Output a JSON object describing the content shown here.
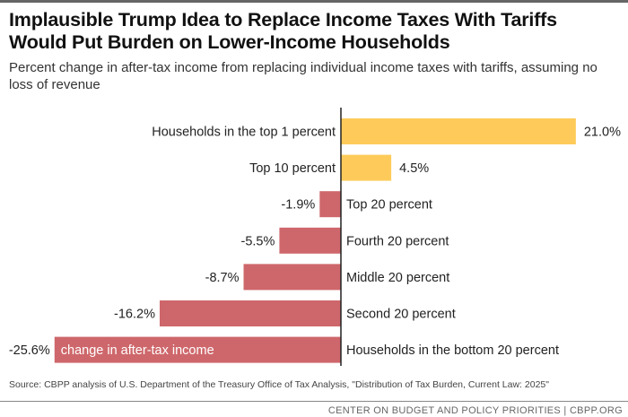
{
  "header": {
    "title": "Implausible Trump Idea to Replace Income Taxes With Tariffs Would Put Burden on Lower-Income Households",
    "subtitle": "Percent change in after-tax income from replacing individual income taxes with tariffs, assuming no loss of revenue"
  },
  "footer": {
    "source": "Source: CBPP analysis of U.S. Department of the Treasury Office of Tax Analysis, \"Distribution of Tax Burden, Current Law: 2025\"",
    "credit": "CENTER ON BUDGET AND POLICY PRIORITIES | CBPP.ORG"
  },
  "chart_data": {
    "type": "bar",
    "orientation": "horizontal",
    "title": "Implausible Trump Idea to Replace Income Taxes With Tariffs Would Put Burden on Lower-Income Households",
    "subtitle": "Percent change in after-tax income from replacing individual income taxes with tariffs, assuming no loss of revenue",
    "categories": [
      "Households in the top 1 percent",
      "Top 10 percent",
      "Top 20 percent",
      "Fourth 20 percent",
      "Middle 20 percent",
      "Second 20 percent",
      "Households in the bottom 20 percent"
    ],
    "values": [
      21.0,
      4.5,
      -1.9,
      -5.5,
      -8.7,
      -16.2,
      -25.6
    ],
    "value_labels": [
      "21.0%",
      "4.5%",
      "-1.9%",
      "-5.5%",
      "-8.7%",
      "-16.2%",
      "-25.6%"
    ],
    "annotation": "change in after-tax income",
    "xlim": [
      -25.6,
      21.0
    ],
    "grid": false,
    "colors": {
      "positive": "#FECB5A",
      "negative": "#CE676B",
      "axis": "#222222"
    }
  }
}
